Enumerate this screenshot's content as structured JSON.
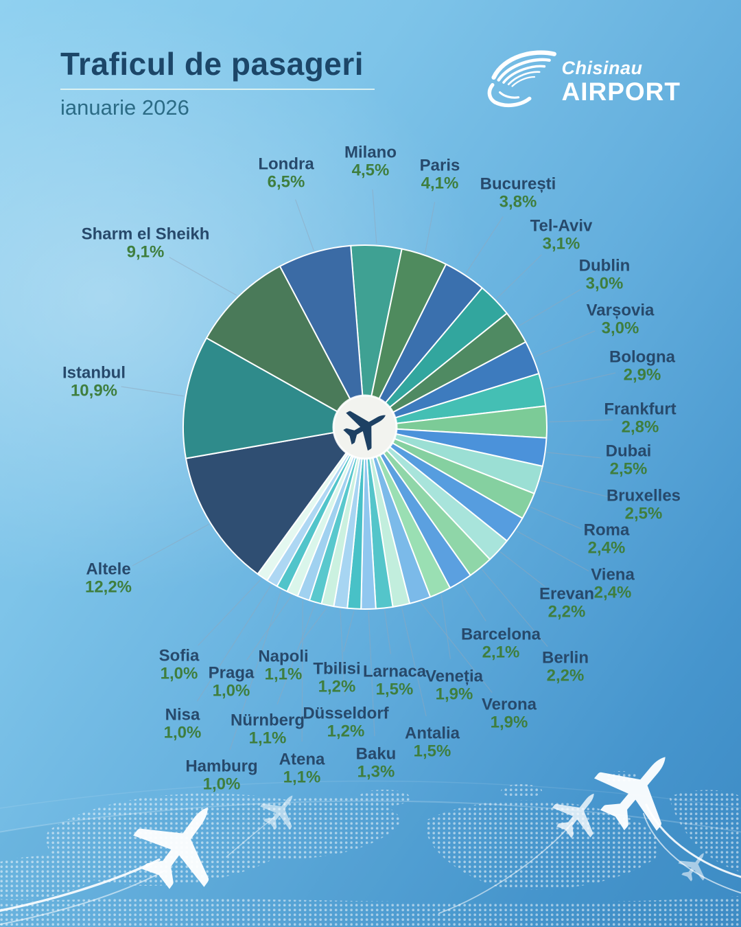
{
  "header": {
    "title": "Traficul de pasageri",
    "subtitle": "ianuarie 2026",
    "logo": {
      "brand_script": "Chisinau",
      "brand_caps": "AIRPORT"
    }
  },
  "icons": {
    "logo_emblem": "wing-hand-emblem-icon",
    "center": "plane-icon",
    "decor": "plane-icon",
    "map": "dotted-world-map"
  },
  "colors": {
    "title_text": "#1C4668",
    "subtitle_text": "#2B6B85",
    "city_label": "#27496B",
    "percent_label": "#3F7E3E",
    "leader_line": "#8FA8BD",
    "slice_stroke": "#FFFFFF",
    "center_disc": "#F2F3EF",
    "center_plane": "#1D4063"
  },
  "chart_data": {
    "type": "pie",
    "title": "Traficul de pasageri",
    "period": "ianuarie 2026",
    "unit": "%",
    "direction": "clockwise",
    "start_angle_deg": -4.5,
    "legend_position": "around",
    "slices": [
      {
        "label": "Milano",
        "value": 4.5,
        "display": "4,5%",
        "color": "#3FA193"
      },
      {
        "label": "Paris",
        "value": 4.1,
        "display": "4,1%",
        "color": "#4F8B5E"
      },
      {
        "label": "București",
        "value": 3.8,
        "display": "3,8%",
        "color": "#3A70AE"
      },
      {
        "label": "Tel-Aviv",
        "value": 3.1,
        "display": "3,1%",
        "color": "#32A69E"
      },
      {
        "label": "Dublin",
        "value": 3.0,
        "display": "3,0%",
        "color": "#4F8A62"
      },
      {
        "label": "Varșovia",
        "value": 3.0,
        "display": "3,0%",
        "color": "#3D7BBE"
      },
      {
        "label": "Bologna",
        "value": 2.9,
        "display": "2,9%",
        "color": "#44BFB4"
      },
      {
        "label": "Frankfurt",
        "value": 2.8,
        "display": "2,8%",
        "color": "#7CCB97"
      },
      {
        "label": "Dubai",
        "value": 2.5,
        "display": "2,5%",
        "color": "#4B92DA"
      },
      {
        "label": "Bruxelles",
        "value": 2.5,
        "display": "2,5%",
        "color": "#9BDFD4"
      },
      {
        "label": "Roma",
        "value": 2.4,
        "display": "2,4%",
        "color": "#85D0A0"
      },
      {
        "label": "Viena",
        "value": 2.4,
        "display": "2,4%",
        "color": "#569DDF"
      },
      {
        "label": "Erevan",
        "value": 2.2,
        "display": "2,2%",
        "color": "#A8E4DB"
      },
      {
        "label": "Berlin",
        "value": 2.2,
        "display": "2,2%",
        "color": "#8FD6A8"
      },
      {
        "label": "Barcelona",
        "value": 2.1,
        "display": "2,1%",
        "color": "#5BA0E0"
      },
      {
        "label": "Veneția",
        "value": 1.9,
        "display": "1,9%",
        "color": "#9ADFB3"
      },
      {
        "label": "Verona",
        "value": 1.9,
        "display": "1,9%",
        "color": "#7BBAE9"
      },
      {
        "label": "Antalia",
        "value": 1.5,
        "display": "1,5%",
        "color": "#C2EEDD"
      },
      {
        "label": "Larnaca",
        "value": 1.5,
        "display": "1,5%",
        "color": "#54C5CA"
      },
      {
        "label": "Baku",
        "value": 1.3,
        "display": "1,3%",
        "color": "#90C7EF"
      },
      {
        "label": "Tbilisi",
        "value": 1.2,
        "display": "1,2%",
        "color": "#48C1C7"
      },
      {
        "label": "Düsseldorf",
        "value": 1.2,
        "display": "1,2%",
        "color": "#A7D5F2"
      },
      {
        "label": "Napoli",
        "value": 1.1,
        "display": "1,1%",
        "color": "#CBF1E0"
      },
      {
        "label": "Nürnberg",
        "value": 1.1,
        "display": "1,1%",
        "color": "#59C8CD"
      },
      {
        "label": "Atena",
        "value": 1.1,
        "display": "1,1%",
        "color": "#A0D1F0"
      },
      {
        "label": "Praga",
        "value": 1.0,
        "display": "1,0%",
        "color": "#DAF6EB"
      },
      {
        "label": "Hamburg",
        "value": 1.0,
        "display": "1,0%",
        "color": "#51C4CA"
      },
      {
        "label": "Nisa",
        "value": 1.0,
        "display": "1,0%",
        "color": "#ADD7F3"
      },
      {
        "label": "Sofia",
        "value": 1.0,
        "display": "1,0%",
        "color": "#E4F8F0"
      },
      {
        "label": "Altele",
        "value": 12.2,
        "display": "12,2%",
        "color": "#2F4E72"
      },
      {
        "label": "Istanbul",
        "value": 10.9,
        "display": "10,9%",
        "color": "#2F8B8B"
      },
      {
        "label": "Sharm el Sheikh",
        "value": 9.1,
        "display": "9,1%",
        "color": "#4A7A59"
      },
      {
        "label": "Londra",
        "value": 6.5,
        "display": "6,5%",
        "color": "#3B6BA5"
      }
    ]
  }
}
